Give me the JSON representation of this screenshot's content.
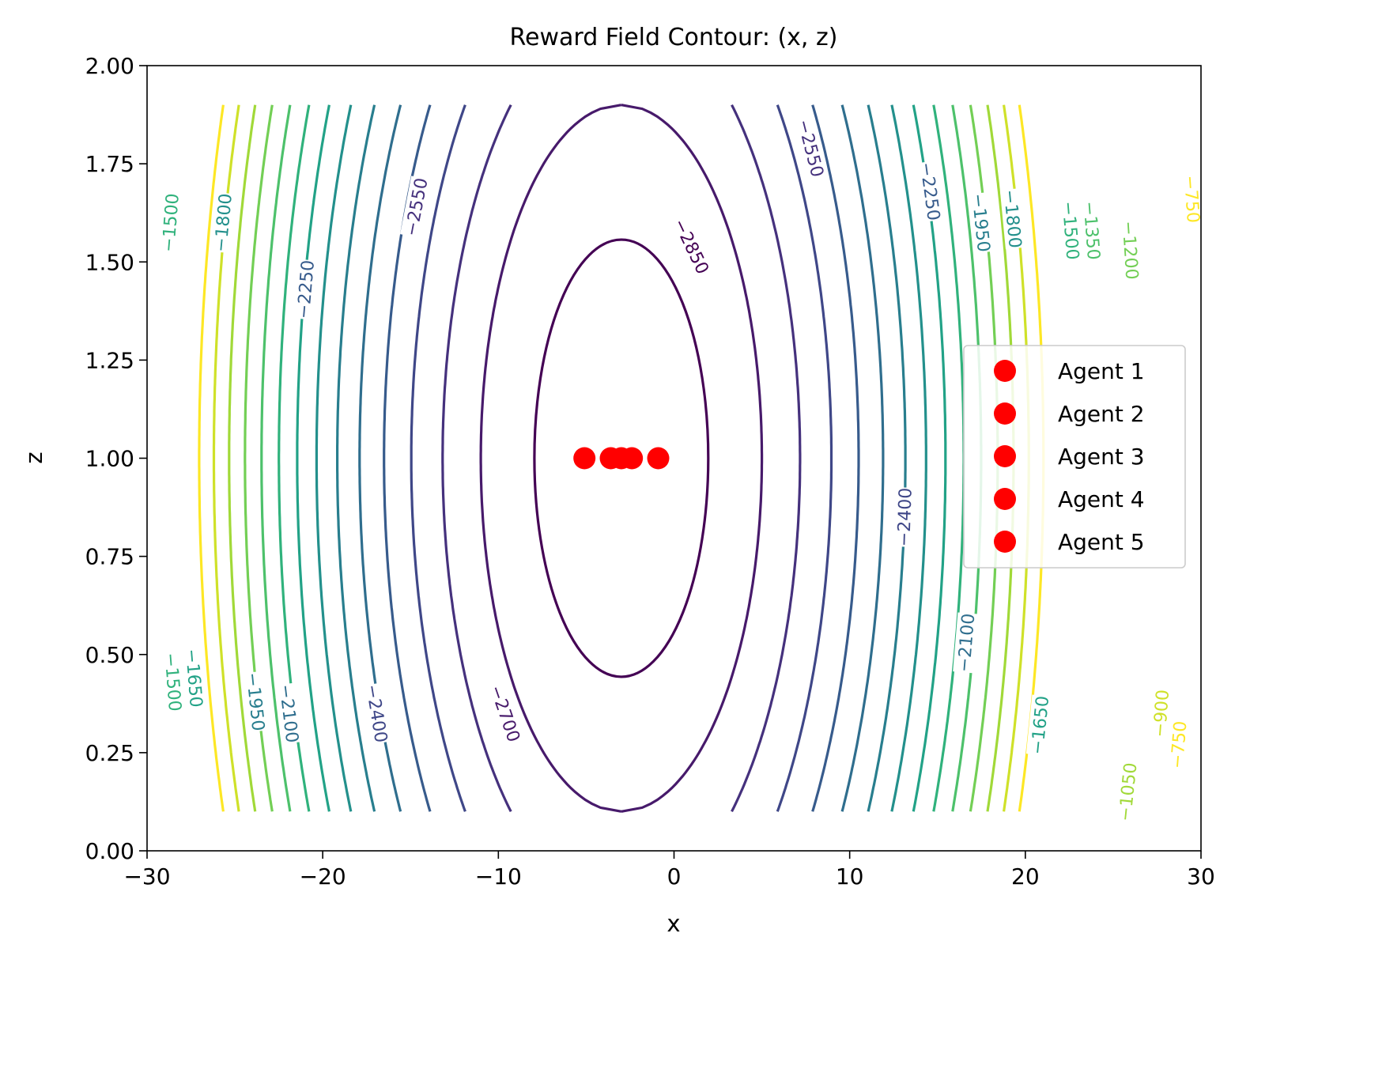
{
  "chart_data": {
    "type": "contour",
    "title": "Reward Field Contour: (x, z)",
    "xlabel": "x",
    "ylabel": "z",
    "xlim": [
      -30,
      30
    ],
    "ylim": [
      0,
      2
    ],
    "x_ticks": [
      "−30",
      "−20",
      "−10",
      "0",
      "10",
      "20",
      "30"
    ],
    "x_tick_values": [
      -30,
      -20,
      -10,
      0,
      10,
      20,
      30
    ],
    "y_ticks": [
      "0.00",
      "0.25",
      "0.50",
      "0.75",
      "1.00",
      "1.25",
      "1.50",
      "1.75",
      "2.00"
    ],
    "y_tick_values": [
      0,
      0.25,
      0.5,
      0.75,
      1.0,
      1.25,
      1.5,
      1.75,
      2.0
    ],
    "grid": false,
    "colormap": "viridis",
    "field": {
      "center_x": -3,
      "center_z": 1.0,
      "min_value": -2943,
      "value_label": "reward",
      "z_domain": [
        0.1,
        1.9
      ]
    },
    "levels": [
      -2850,
      -2700,
      -2550,
      -2400,
      -2250,
      -2100,
      -1950,
      -1800,
      -1650,
      -1500,
      -1350,
      -1200,
      -1050,
      -900,
      -750
    ],
    "contour_labels": [
      {
        "text": "−2850",
        "x": 1.0,
        "z": 1.54,
        "level": -2850
      },
      {
        "text": "−2700",
        "x": -9.6,
        "z": 0.35,
        "level": -2700
      },
      {
        "text": "−2550",
        "x": -14.7,
        "z": 1.64,
        "level": -2550
      },
      {
        "text": "−2550",
        "x": 7.8,
        "z": 1.79,
        "level": -2550
      },
      {
        "text": "−2400",
        "x": -16.9,
        "z": 0.35,
        "level": -2400
      },
      {
        "text": "−2400",
        "x": 13.1,
        "z": 0.85,
        "level": -2400
      },
      {
        "text": "−2250",
        "x": -21.0,
        "z": 1.43,
        "level": -2250
      },
      {
        "text": "−2250",
        "x": 14.6,
        "z": 1.68,
        "level": -2250
      },
      {
        "text": "−2100",
        "x": -21.9,
        "z": 0.35,
        "level": -2100
      },
      {
        "text": "−2100",
        "x": 16.6,
        "z": 0.53,
        "level": -2100
      },
      {
        "text": "−1950",
        "x": -23.8,
        "z": 0.38,
        "level": -1950
      },
      {
        "text": "−1950",
        "x": 17.5,
        "z": 1.6,
        "level": -1950
      },
      {
        "text": "−1800",
        "x": -25.7,
        "z": 1.6,
        "level": -1800
      },
      {
        "text": "−1800",
        "x": 19.3,
        "z": 1.61,
        "level": -1800
      },
      {
        "text": "−1650",
        "x": -27.3,
        "z": 0.44,
        "level": -1650
      },
      {
        "text": "−1650",
        "x": 20.8,
        "z": 0.32,
        "level": -1650
      },
      {
        "text": "−1500",
        "x": -28.7,
        "z": 1.6,
        "level": -1500
      },
      {
        "text": "−1500",
        "x": -28.5,
        "z": 0.43,
        "level": -1500
      },
      {
        "text": "−1500",
        "x": 22.6,
        "z": 1.58,
        "level": -1500
      },
      {
        "text": "−1350",
        "x": 23.8,
        "z": 1.58,
        "level": -1350
      },
      {
        "text": "−1200",
        "x": 26.0,
        "z": 1.53,
        "level": -1200
      },
      {
        "text": "−1050",
        "x": 25.8,
        "z": 0.15,
        "level": -1050
      },
      {
        "text": "−900",
        "x": 27.7,
        "z": 0.35,
        "level": -900
      },
      {
        "text": "−750",
        "x": 28.7,
        "z": 0.27,
        "level": -750
      },
      {
        "text": "−750",
        "x": 29.5,
        "z": 1.66,
        "level": -750
      }
    ],
    "series": [
      {
        "name": "Agent 1",
        "x": [
          -5.1
        ],
        "z": [
          1.0
        ],
        "color": "#ff0000"
      },
      {
        "name": "Agent 2",
        "x": [
          -3.6
        ],
        "z": [
          1.0
        ],
        "color": "#ff0000"
      },
      {
        "name": "Agent 3",
        "x": [
          -3.0
        ],
        "z": [
          1.0
        ],
        "color": "#ff0000"
      },
      {
        "name": "Agent 4",
        "x": [
          -2.4
        ],
        "z": [
          1.0
        ],
        "color": "#ff0000"
      },
      {
        "name": "Agent 5",
        "x": [
          -0.9
        ],
        "z": [
          1.0
        ],
        "color": "#ff0000"
      }
    ],
    "legend": {
      "placement": "center-right"
    }
  }
}
